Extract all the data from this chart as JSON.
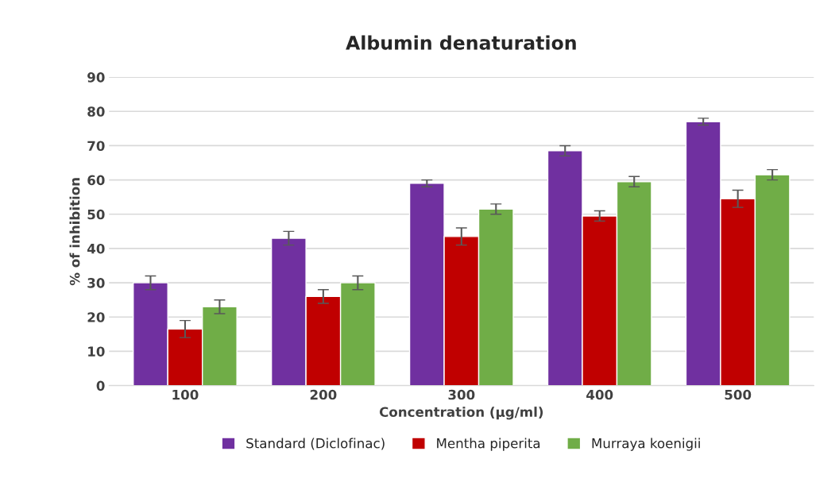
{
  "chart_data": {
    "type": "bar",
    "title": "Albumin denaturation",
    "xlabel": "Concentration (µg/ml)",
    "ylabel": "% of inhibition",
    "categories": [
      "100",
      "200",
      "300",
      "400",
      "500"
    ],
    "series": [
      {
        "name": "Standard (Diclofinac)",
        "color": "#7030a0",
        "values": [
          30,
          43,
          59,
          68.5,
          77
        ],
        "errors": [
          2,
          2,
          1,
          1.5,
          1
        ]
      },
      {
        "name": "Mentha piperita",
        "color": "#c00000",
        "values": [
          16.5,
          26,
          43.5,
          49.5,
          54.5
        ],
        "errors": [
          2.5,
          2,
          2.5,
          1.5,
          2.5
        ]
      },
      {
        "name": "Murraya koenigii",
        "color": "#70ad47",
        "values": [
          23,
          30,
          51.5,
          59.5,
          61.5
        ],
        "errors": [
          2,
          2,
          1.5,
          1.5,
          1.5
        ]
      }
    ],
    "ylim": [
      0,
      90
    ],
    "yticks": [
      0,
      10,
      20,
      30,
      40,
      50,
      60,
      70,
      80,
      90
    ],
    "grid": "y",
    "legend": "bottom"
  }
}
